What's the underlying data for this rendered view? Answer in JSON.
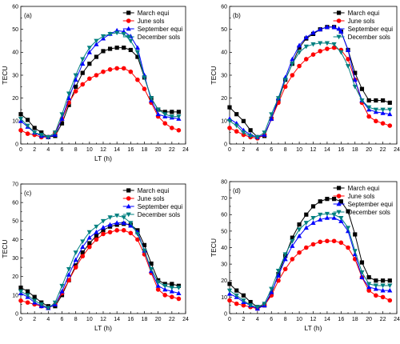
{
  "colors": {
    "March equi": "#000000",
    "June sols": "#ff0000",
    "September equi": "#0000ff",
    "December sols": "#008080"
  },
  "markers": {
    "March equi": "square",
    "June sols": "circle",
    "September equi": "triangle-up",
    "December sols": "triangle-down"
  },
  "chart_data": [
    {
      "type": "line",
      "panel_label": "(a)",
      "xlabel": "LT (h)",
      "ylabel": "TECU",
      "xlim": [
        0,
        24
      ],
      "ylim": [
        0,
        60
      ],
      "xticks": [
        0,
        2,
        4,
        6,
        8,
        10,
        12,
        14,
        16,
        18,
        20,
        22,
        24
      ],
      "yticks": [
        0,
        10,
        20,
        30,
        40,
        50,
        60
      ],
      "grid": false,
      "legend_position": "top-right",
      "x": [
        0,
        1,
        2,
        3,
        4,
        5,
        6,
        7,
        8,
        9,
        10,
        11,
        12,
        13,
        14,
        15,
        16,
        17,
        18,
        19,
        20,
        21,
        22,
        23
      ],
      "series": [
        {
          "name": "March equi",
          "values": [
            13,
            10.5,
            7,
            5,
            3,
            3.5,
            9,
            17,
            25,
            31,
            35,
            38,
            40.5,
            41.5,
            42,
            42,
            41,
            38,
            29,
            20,
            15,
            14,
            14,
            14
          ]
        },
        {
          "name": "June sols",
          "values": [
            6,
            4.5,
            4,
            3,
            3,
            5,
            11,
            18,
            23,
            26,
            28.5,
            30,
            31.5,
            32.5,
            33,
            33,
            31.5,
            28,
            24,
            18,
            12,
            9,
            7,
            6
          ]
        },
        {
          "name": "September equi",
          "values": [
            10,
            7.5,
            5,
            3.5,
            3,
            4,
            11,
            20,
            28,
            35,
            40,
            43.5,
            46,
            48,
            49.5,
            49,
            47,
            42,
            30,
            19,
            13,
            12,
            11.5,
            11
          ]
        },
        {
          "name": "December sols",
          "values": [
            11,
            8,
            5,
            4,
            3,
            5,
            13,
            22,
            30,
            37,
            42,
            45,
            47,
            48,
            48.5,
            48,
            45,
            40,
            29,
            20,
            15,
            13,
            12,
            12
          ]
        }
      ]
    },
    {
      "type": "line",
      "panel_label": "(b)",
      "xlabel": "",
      "ylabel": "TECU",
      "xlim": [
        0,
        24
      ],
      "ylim": [
        0,
        60
      ],
      "xticks": [
        0,
        2,
        4,
        6,
        8,
        10,
        12,
        14,
        16,
        18,
        20,
        22,
        24
      ],
      "yticks": [
        0,
        10,
        20,
        30,
        40,
        50,
        60
      ],
      "grid": false,
      "legend_position": "top-right",
      "x": [
        0,
        1,
        2,
        3,
        4,
        5,
        6,
        7,
        8,
        9,
        10,
        11,
        12,
        13,
        14,
        15,
        16,
        17,
        18,
        19,
        20,
        21,
        22,
        23
      ],
      "series": [
        {
          "name": "March equi",
          "values": [
            16,
            13,
            10,
            6,
            3,
            3.5,
            11,
            19,
            28,
            35,
            42,
            46,
            48,
            50,
            51,
            51,
            49,
            41,
            31,
            24,
            19,
            19,
            19,
            18
          ]
        },
        {
          "name": "June sols",
          "values": [
            7,
            5.5,
            4,
            3,
            2.5,
            4,
            11,
            18,
            25,
            30,
            34,
            37,
            39,
            40.5,
            41.5,
            42,
            41,
            37,
            28,
            18,
            12,
            10,
            9,
            8
          ]
        },
        {
          "name": "September equi",
          "values": [
            11,
            9,
            6,
            4,
            3,
            4,
            11,
            20,
            29,
            37,
            43,
            46.5,
            48.5,
            50,
            51,
            51,
            49,
            41,
            28,
            19,
            15,
            14,
            13.5,
            13
          ]
        },
        {
          "name": "December sols",
          "values": [
            10,
            8,
            5,
            3.5,
            3,
            5,
            13,
            20,
            28,
            35,
            40,
            42.5,
            43.5,
            44,
            44,
            43.5,
            40,
            34,
            25,
            19,
            16,
            15,
            15,
            15
          ]
        }
      ]
    },
    {
      "type": "line",
      "panel_label": "(c)",
      "xlabel": "LT (h)",
      "ylabel": "TECU",
      "xlim": [
        0,
        24
      ],
      "ylim": [
        0,
        70
      ],
      "xticks": [
        0,
        2,
        4,
        6,
        8,
        10,
        12,
        14,
        16,
        18,
        20,
        22,
        24
      ],
      "yticks": [
        0,
        10,
        20,
        30,
        40,
        50,
        60,
        70
      ],
      "grid": false,
      "legend_position": "top-right",
      "x": [
        0,
        1,
        2,
        3,
        4,
        5,
        6,
        7,
        8,
        9,
        10,
        11,
        12,
        13,
        14,
        15,
        16,
        17,
        18,
        19,
        20,
        21,
        22,
        23
      ],
      "series": [
        {
          "name": "March equi",
          "values": [
            14,
            12,
            9,
            6,
            4,
            4,
            10,
            18,
            26,
            33,
            38,
            42,
            45,
            47,
            48,
            48.5,
            48,
            45,
            37,
            27,
            18,
            16,
            16,
            15
          ]
        },
        {
          "name": "June sols",
          "values": [
            7,
            6,
            5,
            4,
            3,
            5,
            11,
            18,
            25,
            31,
            36,
            40,
            43,
            44,
            45,
            45,
            43.5,
            40,
            32,
            22,
            13,
            10,
            9,
            8
          ]
        },
        {
          "name": "September equi",
          "values": [
            11,
            9,
            6,
            4,
            3,
            5,
            12,
            21,
            29,
            36,
            41,
            44,
            46.5,
            48,
            49,
            49,
            47.5,
            44,
            34,
            23,
            15,
            13,
            12,
            11
          ]
        },
        {
          "name": "December sols",
          "values": [
            12,
            10,
            7,
            5,
            3,
            6,
            15,
            24,
            33,
            39,
            44,
            47,
            50,
            52,
            53,
            52,
            49,
            43,
            34,
            24,
            17,
            15,
            14,
            14
          ]
        }
      ]
    },
    {
      "type": "line",
      "panel_label": "(d)",
      "xlabel": "LT (h)",
      "ylabel": "TECU",
      "xlim": [
        0,
        24
      ],
      "ylim": [
        0,
        80
      ],
      "xticks": [
        0,
        2,
        4,
        6,
        8,
        10,
        12,
        14,
        16,
        18,
        20,
        22,
        24
      ],
      "yticks": [
        0,
        10,
        20,
        30,
        40,
        50,
        60,
        70,
        80
      ],
      "grid": false,
      "legend_position": "top-right",
      "x": [
        0,
        1,
        2,
        3,
        4,
        5,
        6,
        7,
        8,
        9,
        10,
        11,
        12,
        13,
        14,
        15,
        16,
        17,
        18,
        19,
        20,
        21,
        22,
        23
      ],
      "series": [
        {
          "name": "March equi",
          "values": [
            18,
            14,
            11,
            7,
            4,
            5,
            12,
            24,
            35,
            46,
            54,
            60,
            65,
            68,
            69.5,
            69.5,
            68,
            62,
            48,
            31,
            22,
            20,
            20,
            20
          ]
        },
        {
          "name": "June sols",
          "values": [
            8,
            6,
            5,
            4,
            3,
            5,
            11,
            20,
            27,
            33,
            37,
            40,
            42,
            43.5,
            44,
            44,
            43,
            40,
            33,
            22,
            14,
            11,
            10,
            8
          ]
        },
        {
          "name": "September equi",
          "values": [
            12,
            10,
            7,
            5,
            3,
            5,
            13,
            23,
            33,
            41,
            47,
            52,
            55,
            57,
            58,
            58,
            56,
            50,
            36,
            22,
            16,
            15,
            14,
            14
          ]
        },
        {
          "name": "December sols",
          "values": [
            14,
            11,
            8,
            5,
            4,
            6,
            15,
            26,
            36,
            44,
            51,
            55,
            58,
            60,
            60.5,
            60,
            58,
            52,
            38,
            25,
            18,
            17,
            17,
            17
          ]
        }
      ]
    }
  ]
}
